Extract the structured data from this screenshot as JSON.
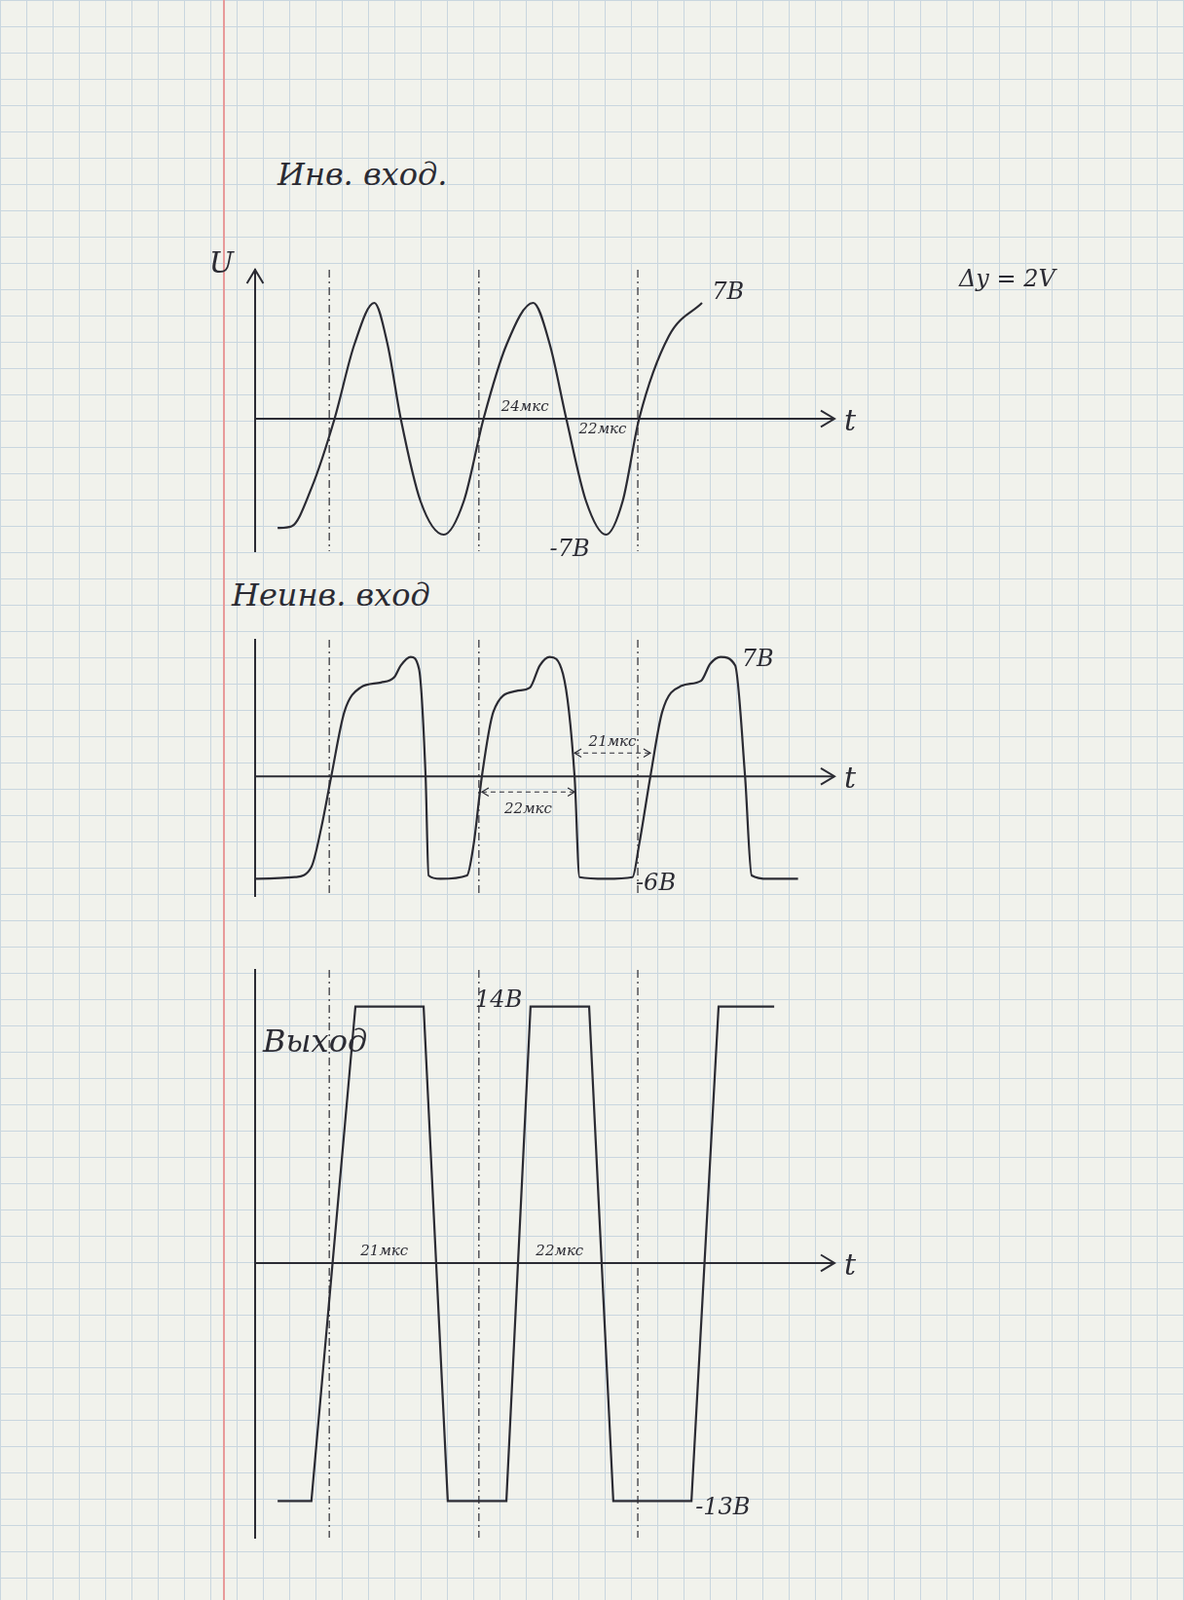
{
  "chart_data": [
    {
      "type": "line",
      "title": "Инв. вход.",
      "y_label": "U",
      "x_label": "t",
      "note": "Δy = 2V",
      "xlim": [
        0,
        175
      ],
      "ylim": [
        -8,
        9
      ],
      "tick_labels": false,
      "grid": false,
      "color": "#2b2b33",
      "line_style": "smooth",
      "x": [
        6.8,
        11,
        17,
        24,
        30,
        36,
        40,
        44,
        50,
        57,
        63,
        69,
        76,
        84,
        89,
        94,
        100,
        106,
        111,
        116,
        125,
        135
      ],
      "values": [
        -6.6,
        -6.5,
        -4.2,
        0,
        4.5,
        7,
        4.5,
        0,
        -5,
        -7,
        -5,
        0,
        4.5,
        7,
        4.5,
        0,
        -5,
        -7,
        -5,
        0,
        5,
        7
      ],
      "guides": [
        22.4,
        67.6,
        115.6
      ],
      "value_notes": [
        {
          "text": "7В",
          "x": 138,
          "y": 7.6
        },
        {
          "text": "-7В",
          "x": 89,
          "y": -7.9
        }
      ],
      "spans": [
        {
          "text": "24мкс",
          "from": 69,
          "to": 94,
          "side": "above"
        },
        {
          "text": "22мкс",
          "from": 94,
          "to": 116,
          "side": "below"
        }
      ]
    },
    {
      "type": "line",
      "title": "Неинв. вход",
      "x_label": "t",
      "xlim": [
        0,
        175
      ],
      "ylim": [
        -7,
        8
      ],
      "tick_labels": false,
      "grid": false,
      "color": "#2b2b33",
      "line_style": "smooth",
      "x": [
        0,
        12,
        17,
        20,
        23,
        27,
        31.8,
        38,
        42,
        44,
        47,
        49.5,
        51.5,
        52.4,
        56,
        64,
        66,
        68.5,
        72,
        78.8,
        83,
        86,
        89,
        93,
        96.5,
        98,
        106,
        114,
        116,
        119.4,
        123,
        128.8,
        134.7,
        137.5,
        140.6,
        145,
        148,
        150,
        155,
        164
      ],
      "values": [
        -6,
        -5.9,
        -5.3,
        -3,
        0,
        3.8,
        5.2,
        5.5,
        5.8,
        6.5,
        7,
        6.3,
        0,
        -5.8,
        -6,
        -5.8,
        -4,
        0,
        3.8,
        5,
        5.2,
        6.5,
        7,
        6,
        0,
        -5.9,
        -6,
        -5.9,
        -4,
        0,
        3.8,
        5.3,
        5.6,
        6.6,
        7,
        6.5,
        0,
        -5.8,
        -6,
        -6
      ],
      "guides": [
        22.4,
        67.6,
        115.6
      ],
      "value_notes": [
        {
          "text": "7В",
          "x": 147,
          "y": 6.8
        },
        {
          "text": "-6В",
          "x": 115,
          "y": -6.3
        }
      ],
      "spans": [
        {
          "text": "21мкс",
          "from": 96.5,
          "to": 119.4,
          "side": "above",
          "line_style": "dashed"
        },
        {
          "text": "22мкс",
          "from": 68.5,
          "to": 96.5,
          "side": "below",
          "line_style": "dashed"
        }
      ]
    },
    {
      "type": "line",
      "title": "Выход",
      "x_label": "t",
      "xlim": [
        0,
        175
      ],
      "ylim": [
        -15,
        16
      ],
      "tick_labels": false,
      "grid": false,
      "color": "#2b2b33",
      "line_style": "straight",
      "x": [
        6.8,
        17,
        30.3,
        50.9,
        58.2,
        75.9,
        83.2,
        100.9,
        108.2,
        131.8,
        140,
        156.8
      ],
      "values": [
        -13,
        -13,
        14,
        14,
        -13,
        -13,
        14,
        14,
        -13,
        -13,
        14,
        14
      ],
      "guides": [
        22.4,
        67.6,
        115.6
      ],
      "value_notes": [
        {
          "text": "14В",
          "x": 66.5,
          "y": 14.3
        },
        {
          "text": "-13В",
          "x": 133,
          "y": -13.4
        }
      ],
      "spans": [
        {
          "text": "21мкс",
          "from": 23.4,
          "to": 54.7,
          "side": "above"
        },
        {
          "text": "22мкс",
          "from": 79.5,
          "to": 104.5,
          "side": "above"
        }
      ]
    }
  ]
}
